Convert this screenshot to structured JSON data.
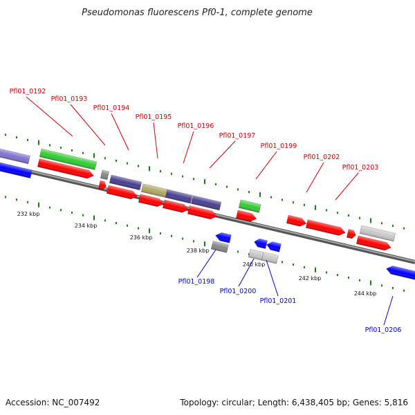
{
  "title": "Pseudomonas fluorescens Pf0-1, complete genome",
  "accession": "Accession: NC_007492",
  "summary": "Topology: circular; Length: 6,438,405 bp; Genes: 5,816",
  "colors": {
    "backbone": "#888888",
    "tick_green": "#1a7a1a",
    "forward_label": "#cc0000",
    "reverse_label": "#0000cc",
    "red": "#ff0000",
    "green": "#33cc33",
    "blue": "#0000ff",
    "slate": "#4a3f8f",
    "olive": "#b0a860",
    "gray": "#888888",
    "lightgray": "#c8c8c8",
    "lavender": "#8070d0"
  },
  "kbp_ticks": [
    "232 kbp",
    "234 kbp",
    "236 kbp",
    "238 kbp",
    "240 kbp",
    "242 kbp",
    "244 kbp"
  ],
  "forward_gene_labels": [
    "Pfl01_0192",
    "Pfl01_0193",
    "Pfl01_0194",
    "Pfl01_0195",
    "Pfl01_0196",
    "Pfl01_0197",
    "Pfl01_0199",
    "Pfl01_0202",
    "Pfl01_0203"
  ],
  "reverse_gene_labels": [
    "Pfl01_0198",
    "Pfl01_0200",
    "Pfl01_0201",
    "Pfl01_0206"
  ]
}
